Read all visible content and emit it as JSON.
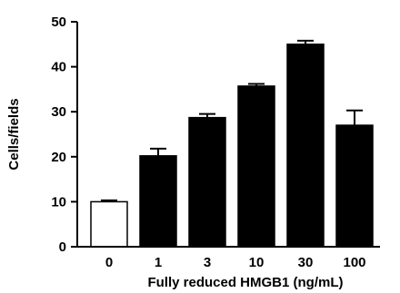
{
  "chart_data": {
    "type": "bar",
    "categories": [
      "0",
      "1",
      "3",
      "10",
      "30",
      "100"
    ],
    "values": [
      10.0,
      20.2,
      28.7,
      35.7,
      45.0,
      27.0
    ],
    "errors": [
      0.3,
      1.6,
      0.8,
      0.5,
      0.8,
      3.3
    ],
    "bar_colors": [
      "#ffffff",
      "#000000",
      "#000000",
      "#000000",
      "#000000",
      "#000000"
    ],
    "xlabel": "Fully reduced HMGB1 (ng/mL)",
    "ylabel": "Cells/fields",
    "ylim": [
      0,
      50
    ],
    "yticks": [
      "0",
      "10",
      "20",
      "30",
      "40",
      "50"
    ],
    "grid": false
  }
}
